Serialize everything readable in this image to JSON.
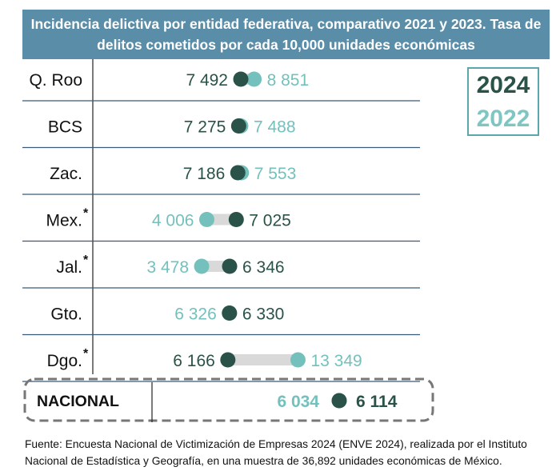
{
  "title": "Incidencia delictiva por entidad federativa, comparativo 2021 y 2023. Tasa de delitos cometidos por cada 10,000 unidades económicas",
  "legend": {
    "year_a": "2024",
    "year_b": "2022"
  },
  "colors": {
    "dark": "#2a5248",
    "light": "#74c0bd",
    "bar": "#d9d9d9",
    "header": "#5a8da8",
    "rule": "#3a5a78"
  },
  "chart_data": {
    "type": "dumbbell",
    "series": [
      {
        "name": "2024",
        "color": "#2a5248"
      },
      {
        "name": "2022",
        "color": "#74c0bd"
      }
    ],
    "rows": [
      {
        "label": "Q. Roo",
        "asterisk": "",
        "v2024": 7492,
        "v2022": 8851,
        "t2024": "7 492",
        "t2022": "8 851"
      },
      {
        "label": "BCS",
        "asterisk": "",
        "v2024": 7275,
        "v2022": 7488,
        "t2024": "7 275",
        "t2022": "7 488"
      },
      {
        "label": "Zac.",
        "asterisk": "",
        "v2024": 7186,
        "v2022": 7553,
        "t2024": "7 186",
        "t2022": "7 553"
      },
      {
        "label": "Mex.",
        "asterisk": "*",
        "v2024": 7025,
        "v2022": 4006,
        "t2024": "7 025",
        "t2022": "4 006"
      },
      {
        "label": "Jal.",
        "asterisk": "*",
        "v2024": 6346,
        "v2022": 3478,
        "t2024": "6 346",
        "t2022": "3 478"
      },
      {
        "label": "Gto.",
        "asterisk": "",
        "v2024": 6330,
        "v2022": 6326,
        "t2024": "6 330",
        "t2022": "6 326"
      },
      {
        "label": "Dgo.",
        "asterisk": "*",
        "v2024": 6166,
        "v2022": 13349,
        "t2024": "6 166",
        "t2022": "13 349"
      }
    ],
    "national": {
      "label": "NACIONAL",
      "v2024": 6114,
      "v2022": 6034,
      "t2024": "6 114",
      "t2022": "6 034"
    }
  },
  "footer": "Fuente: Encuesta Nacional de Victimización de Empresas 2024 (ENVE 2024), realizada por el Instituto Nacional de Estadística y Geografía, en una muestra de 36,892 unidades económicas de México."
}
